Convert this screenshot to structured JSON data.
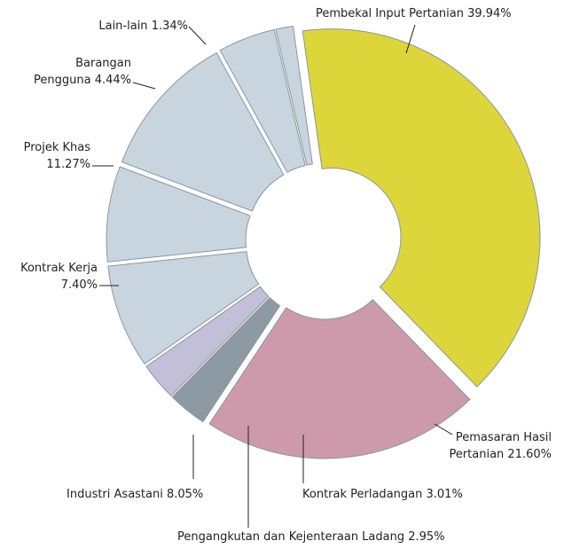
{
  "chart_data": {
    "type": "pie",
    "categories": [
      "Pembekal Input Pertanian",
      "Pemasaran Hasil Pertanian",
      "Kontrak Perladangan",
      "Pengangkutan dan Kejenteraan Ladang",
      "Industri Asastani",
      "Kontrak Kerja",
      "Projek Khas",
      "Barangan Pengguna",
      "Lain-lain"
    ],
    "values": [
      39.94,
      21.6,
      3.01,
      2.95,
      8.05,
      7.4,
      11.27,
      4.44,
      1.34
    ],
    "value_labels": [
      "39.94%",
      "21.60%",
      "3.01%",
      "2.95%",
      "8.05%",
      "7.40%",
      "11.27%",
      "4.44%",
      "1.34%"
    ],
    "colors": [
      "#dcd63a",
      "#cc9aab",
      "#8e9aa3",
      "#c3bfd8",
      "#c8d5df",
      "#c8d5df",
      "#c8d5df",
      "#c8d5df",
      "#c8d5df"
    ]
  }
}
